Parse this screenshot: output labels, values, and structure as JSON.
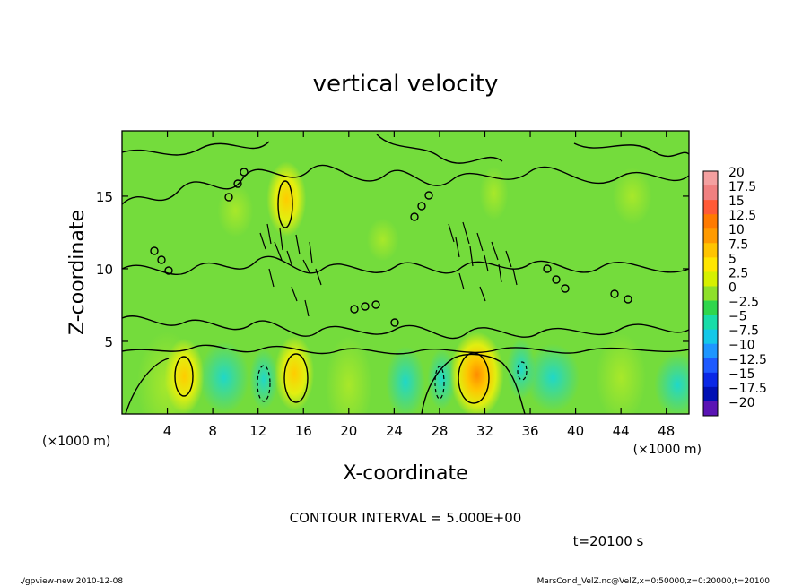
{
  "chart_data": {
    "type": "heatmap",
    "title": "vertical velocity",
    "xlabel": "X-coordinate",
    "ylabel": "Z-coordinate",
    "x_unit_left": "(×1000 m)",
    "x_unit_right": "(×1000 m)",
    "xlim": [
      0,
      50
    ],
    "ylim": [
      0,
      19.5
    ],
    "x_ticks": [
      4,
      8,
      12,
      16,
      20,
      24,
      28,
      32,
      36,
      40,
      44,
      48
    ],
    "y_ticks": [
      5,
      10,
      15
    ],
    "contour_interval_text": "CONTOUR INTERVAL = 5.000E+00",
    "time_text": "t=20100 s",
    "grid": false,
    "colorbar": {
      "position": "right",
      "labels": [
        "20",
        "17.5",
        "15",
        "12.5",
        "10",
        "7.5",
        "5",
        "2.5",
        "0",
        "−2.5",
        "−5",
        "−7.5",
        "−10",
        "−12.5",
        "−15",
        "−17.5",
        "−20"
      ],
      "colors": [
        "#f4a0a0",
        "#f08080",
        "#ff5a36",
        "#ff7a00",
        "#ff9a00",
        "#ffc400",
        "#ffe600",
        "#d6f000",
        "#8ee02a",
        "#2fd64c",
        "#18dca8",
        "#14c8e8",
        "#1e96ff",
        "#1e5aff",
        "#0a28e6",
        "#0010b4",
        "#5a14b4"
      ]
    },
    "features": [
      {
        "type": "updraft",
        "x": 5.5,
        "z": 2.6,
        "peak": 7.5
      },
      {
        "type": "downdraft",
        "x": 12.5,
        "z": 2.4,
        "peak": -2.5
      },
      {
        "type": "updraft",
        "x": 15.2,
        "z": 2.8,
        "peak": 7.5
      },
      {
        "type": "updraft",
        "x": 14.5,
        "z": 14.8,
        "peak": 5
      },
      {
        "type": "downdraft",
        "x": 28.2,
        "z": 2.4,
        "peak": -2.5
      },
      {
        "type": "updraft",
        "x": 31.3,
        "z": 2.7,
        "peak": 10
      },
      {
        "type": "updraft",
        "x": 32.8,
        "z": 15.2,
        "peak": 2.5
      },
      {
        "type": "downdraft",
        "x": 35.2,
        "z": 3.1,
        "peak": -2.5
      }
    ]
  },
  "footer": {
    "program": "./gpview-new  2010-12-08",
    "source": "MarsCond_VelZ.nc@VelZ,x=0:50000,z=0:20000,t=20100"
  }
}
